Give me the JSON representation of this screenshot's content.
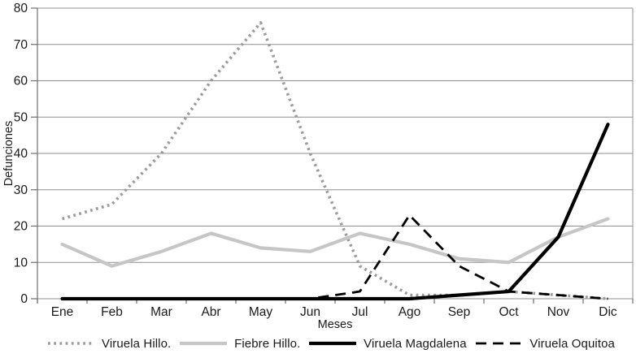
{
  "chart_data": {
    "type": "line",
    "title": "",
    "xlabel": "Meses",
    "ylabel": "Defunciones",
    "ylim": [
      0,
      80
    ],
    "ytick_step": 10,
    "grid": "horizontal",
    "legend_position": "bottom",
    "categories": [
      "Ene",
      "Feb",
      "Mar",
      "Abr",
      "May",
      "Jun",
      "Jul",
      "Ago",
      "Sep",
      "Oct",
      "Nov",
      "Dic"
    ],
    "series": [
      {
        "name": "Viruela Hillo.",
        "style": "dotted",
        "color": "#9c9c9c",
        "values": [
          22,
          26,
          40,
          60,
          76,
          40,
          9,
          1,
          1,
          2,
          1,
          0
        ]
      },
      {
        "name": "Fiebre Hillo.",
        "style": "solid",
        "color": "#c6c6c6",
        "values": [
          15,
          9,
          13,
          18,
          14,
          13,
          18,
          15,
          11,
          10,
          17,
          22
        ]
      },
      {
        "name": "Viruela Magdalena",
        "style": "solid",
        "color": "#000000",
        "values": [
          0,
          0,
          0,
          0,
          0,
          0,
          0,
          0,
          1,
          2,
          17,
          48
        ]
      },
      {
        "name": "Viruela Oquitoa",
        "style": "dashed",
        "color": "#000000",
        "values": [
          0,
          0,
          0,
          0,
          0,
          0,
          2,
          23,
          9,
          2,
          1,
          0
        ]
      }
    ]
  },
  "colors": {
    "gridline": "#8f8f8f",
    "axis": "#6e6e6e",
    "text": "#1a1a1a",
    "background": "#ffffff"
  }
}
